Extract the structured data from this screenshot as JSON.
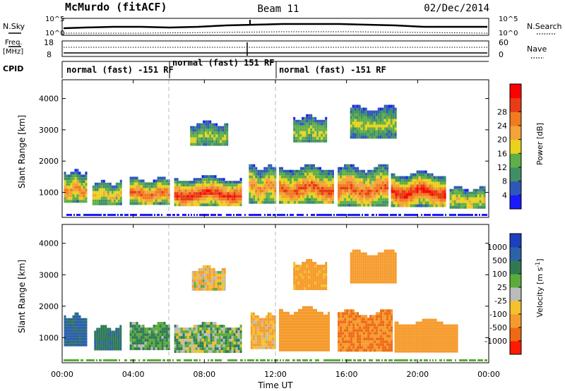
{
  "header": {
    "station": "McMurdo (fitACF)",
    "beam": "Beam 11",
    "date": "02/Dec/2014"
  },
  "noise_panel": {
    "left_label": "N.Sky",
    "right_label": "N.Search",
    "left_ticks": [
      "10^5",
      "10^0"
    ],
    "right_ticks": [
      "10^5",
      "10^0"
    ]
  },
  "freq_panel": {
    "left_label_line1": "Freq.",
    "left_label_line2": "[MHz]",
    "right_label": "Nave",
    "left_ticks": [
      "18",
      "8"
    ],
    "right_ticks": [
      "60",
      "0"
    ]
  },
  "cpid_panel": {
    "label": "CPID",
    "segments": [
      {
        "text": "normal (fast) -151 RF",
        "start_hour": 0,
        "end_hour": 6
      },
      {
        "text": "normal (fast) 151 RF",
        "start_hour": 6,
        "end_hour": 12
      },
      {
        "text": "normal (fast) -151 RF",
        "start_hour": 12,
        "end_hour": 24
      }
    ]
  },
  "x_axis": {
    "label": "Time UT",
    "ticks": [
      "00:00",
      "04:00",
      "08:00",
      "12:00",
      "16:00",
      "20:00",
      "00:00"
    ]
  },
  "power_colorbar": {
    "label": "Power [dB]",
    "ticks": [
      "4",
      "8",
      "12",
      "16",
      "20",
      "24",
      "28"
    ],
    "colors": [
      "#1a1aff",
      "#2d58b8",
      "#3f8f66",
      "#5fae47",
      "#e9d21d",
      "#f2a33a",
      "#f07b20",
      "#e83b16",
      "#ff0000"
    ]
  },
  "velocity_colorbar": {
    "label_main": "Velocity [m s",
    "label_sup": "-1",
    "label_end": "]",
    "ticks": [
      "1000",
      "500",
      "100",
      "25",
      "-25",
      "-100",
      "-500",
      "-1000"
    ],
    "colors": [
      "#1d3fbf",
      "#2c62a8",
      "#2f7a55",
      "#5bab3a",
      "#bbbbbb",
      "#f4c02c",
      "#f59b2c",
      "#ee6a14",
      "#ff1a00"
    ]
  },
  "chart_data": [
    {
      "type": "heatmap",
      "title": "Power",
      "xlabel": "",
      "ylabel": "Slant Range [km]",
      "xlim": [
        0,
        24
      ],
      "ylim": [
        200,
        4600
      ],
      "yticks": [
        "1000",
        "2000",
        "3000",
        "4000"
      ],
      "ytick_values": [
        1000,
        2000,
        3000,
        4000
      ],
      "colorbar_label": "Power [dB]",
      "blobs": [
        {
          "t0": 0.1,
          "t1": 1.3,
          "r0": 700,
          "r1": 1750,
          "level": 3
        },
        {
          "t0": 1.7,
          "t1": 3.3,
          "r0": 650,
          "r1": 1400,
          "level": 2
        },
        {
          "t0": 3.8,
          "t1": 6.0,
          "r0": 650,
          "r1": 1500,
          "level": 4
        },
        {
          "t0": 6.3,
          "t1": 10.0,
          "r0": 600,
          "r1": 1550,
          "level": 5
        },
        {
          "t0": 10.5,
          "t1": 12.0,
          "r0": 700,
          "r1": 1900,
          "level": 3
        },
        {
          "t0": 12.2,
          "t1": 15.2,
          "r0": 650,
          "r1": 1900,
          "level": 4
        },
        {
          "t0": 15.5,
          "t1": 18.3,
          "r0": 600,
          "r1": 1900,
          "level": 4
        },
        {
          "t0": 18.5,
          "t1": 21.5,
          "r0": 600,
          "r1": 1700,
          "level": 5
        },
        {
          "t0": 21.8,
          "t1": 23.8,
          "r0": 500,
          "r1": 1200,
          "level": 2
        },
        {
          "t0": 7.2,
          "t1": 9.3,
          "r0": 2500,
          "r1": 3300,
          "level": 1
        },
        {
          "t0": 13.0,
          "t1": 14.8,
          "r0": 2600,
          "r1": 3500,
          "level": 1
        },
        {
          "t0": 16.2,
          "t1": 18.8,
          "r0": 2800,
          "r1": 3800,
          "level": 1
        }
      ]
    },
    {
      "type": "heatmap",
      "title": "Velocity",
      "xlabel": "Time UT",
      "ylabel": "Slant Range [km]",
      "xlim": [
        0,
        24
      ],
      "ylim": [
        200,
        4600
      ],
      "yticks": [
        "1000",
        "2000",
        "3000",
        "4000"
      ],
      "ytick_values": [
        1000,
        2000,
        3000,
        4000
      ],
      "colorbar_label": "Velocity [m s-1]",
      "blobs": [
        {
          "t0": 0.1,
          "t1": 1.4,
          "r0": 750,
          "r1": 1800,
          "vel": 300
        },
        {
          "t0": 1.8,
          "t1": 3.3,
          "r0": 650,
          "r1": 1400,
          "vel": 200
        },
        {
          "t0": 3.8,
          "t1": 6.0,
          "r0": 650,
          "r1": 1500,
          "vel": 100
        },
        {
          "t0": 6.3,
          "t1": 10.0,
          "r0": 600,
          "r1": 1500,
          "vel": 50
        },
        {
          "t0": 10.6,
          "t1": 12.0,
          "r0": 700,
          "r1": 1800,
          "vel": -100
        },
        {
          "t0": 12.2,
          "t1": 15.0,
          "r0": 650,
          "r1": 2000,
          "vel": -200
        },
        {
          "t0": 15.5,
          "t1": 18.5,
          "r0": 600,
          "r1": 1900,
          "vel": -300
        },
        {
          "t0": 18.7,
          "t1": 22.2,
          "r0": 600,
          "r1": 1600,
          "vel": -200
        },
        {
          "t0": 7.3,
          "t1": 9.2,
          "r0": 2500,
          "r1": 3300,
          "vel": -50
        },
        {
          "t0": 13.0,
          "t1": 14.8,
          "r0": 2600,
          "r1": 3500,
          "vel": -150
        },
        {
          "t0": 16.2,
          "t1": 18.8,
          "r0": 2800,
          "r1": 3800,
          "vel": -200
        }
      ]
    }
  ]
}
